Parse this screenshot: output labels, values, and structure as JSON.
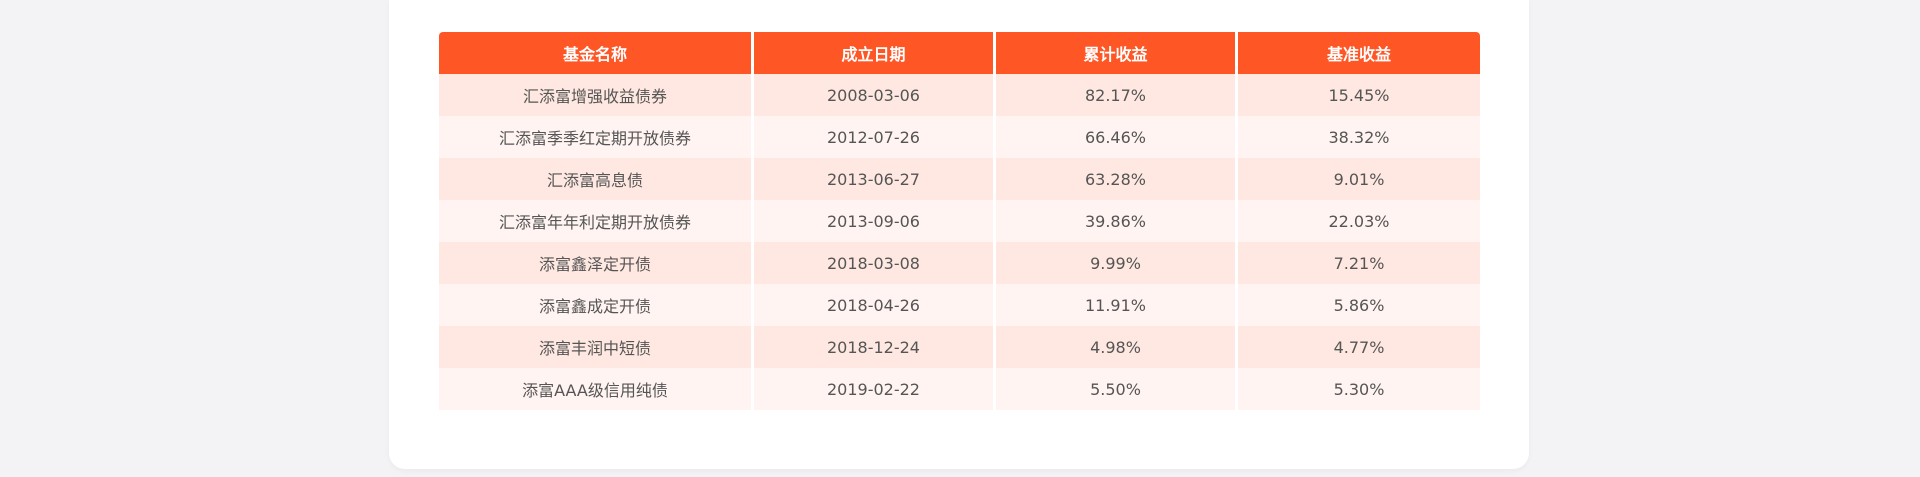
{
  "colors": {
    "header_bg": "#ff5626",
    "row_odd_bg": "#fee8e1",
    "row_even_bg": "#fff4f1",
    "page_bg": "#f3f3f5"
  },
  "table": {
    "headers": [
      "基金名称",
      "成立日期",
      "累计收益",
      "基准收益"
    ],
    "rows": [
      [
        "汇添富增强收益债券",
        "2008-03-06",
        "82.17%",
        "15.45%"
      ],
      [
        "汇添富季季红定期开放债券",
        "2012-07-26",
        "66.46%",
        "38.32%"
      ],
      [
        "汇添富高息债",
        "2013-06-27",
        "63.28%",
        "9.01%"
      ],
      [
        "汇添富年年利定期开放债券",
        "2013-09-06",
        "39.86%",
        "22.03%"
      ],
      [
        "添富鑫泽定开债",
        "2018-03-08",
        "9.99%",
        "7.21%"
      ],
      [
        "添富鑫成定开债",
        "2018-04-26",
        "11.91%",
        "5.86%"
      ],
      [
        "添富丰润中短债",
        "2018-12-24",
        "4.98%",
        "4.77%"
      ],
      [
        "添富AAA级信用纯债",
        "2019-02-22",
        "5.50%",
        "5.30%"
      ]
    ]
  }
}
